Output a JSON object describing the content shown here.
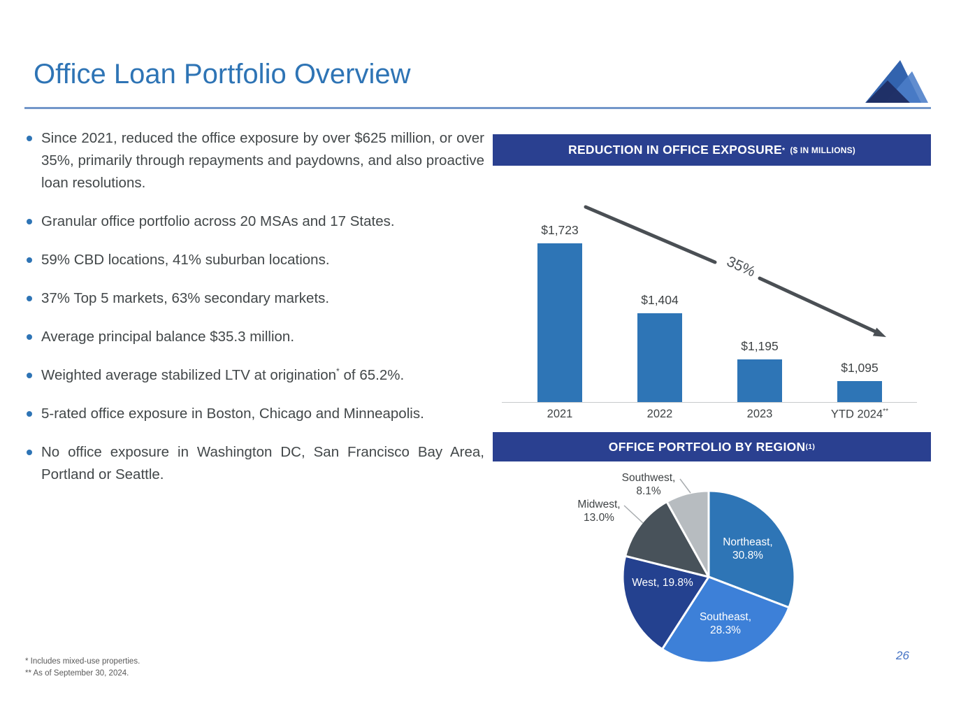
{
  "slide": {
    "title": "Office Loan Portfolio Overview",
    "page_number": "26",
    "footnote_1": "* Includes mixed-use properties.",
    "footnote_2": "** As of September 30, 2024."
  },
  "bullets": [
    {
      "pre": "Since 2021, reduced the office exposure by over $625 million, or over 35%, primarily through repayments and paydowns, and also proactive loan resolutions.",
      "sup": "",
      "post": ""
    },
    {
      "pre": "Granular office portfolio across 20 MSAs and 17 States.",
      "sup": "",
      "post": ""
    },
    {
      "pre": "59% CBD locations, 41% suburban locations.",
      "sup": "",
      "post": ""
    },
    {
      "pre": "37% Top 5 markets, 63% secondary markets.",
      "sup": "",
      "post": ""
    },
    {
      "pre": "Average principal balance $35.3 million.",
      "sup": "",
      "post": ""
    },
    {
      "pre": "Weighted average stabilized LTV at origination",
      "sup": "*",
      "post": " of 65.2%."
    },
    {
      "pre": "5-rated office exposure in Boston, Chicago and Minneapolis.",
      "sup": "",
      "post": ""
    },
    {
      "pre": "No office exposure in Washington DC, San Francisco Bay Area, Portland or Seattle.",
      "sup": "",
      "post": ""
    }
  ],
  "exposure_panel": {
    "header_title": "REDUCTION IN OFFICE EXPOSURE",
    "header_sup": "*",
    "header_subtitle": "($ IN MILLIONS)",
    "annotation": "35%"
  },
  "region_panel": {
    "header_title": "OFFICE PORTFOLIO BY REGION",
    "header_sup": "(1)",
    "slice_labels": [
      {
        "line1": "Northeast,",
        "line2": "30.8%"
      },
      {
        "line1": "Southeast,",
        "line2": "28.3%"
      },
      {
        "line1": "West, 19.8%",
        "line2": ""
      },
      {
        "line1": "Midwest,",
        "line2": "13.0%"
      },
      {
        "line1": "Southwest,",
        "line2": "8.1%"
      }
    ]
  },
  "chart_data": [
    {
      "type": "bar",
      "title": "REDUCTION IN OFFICE EXPOSURE ($ IN MILLIONS)",
      "categories": [
        "2021",
        "2022",
        "2023",
        "YTD 2024**"
      ],
      "values": [
        1723,
        1404,
        1195,
        1095
      ],
      "data_labels": [
        "$1,723",
        "$1,404",
        "$1,195",
        "$1,095"
      ],
      "annotation": "35% reduction arrow pointing down-right",
      "ylabel": "$ in millions",
      "ylim": [
        1000,
        1750
      ],
      "gridlines": false,
      "legend": "none",
      "bar_color": "#2E75B6"
    },
    {
      "type": "pie",
      "title": "OFFICE PORTFOLIO BY REGION",
      "labels": [
        "Northeast",
        "Southeast",
        "West",
        "Midwest",
        "Southwest"
      ],
      "values": [
        30.8,
        28.3,
        19.8,
        13.0,
        8.1
      ],
      "colors": [
        "#2E75B6",
        "#3D80D8",
        "#24418F",
        "#48525A",
        "#B7BCC0"
      ],
      "start_angle_deg": 0,
      "direction": "clockwise",
      "legend": "none"
    }
  ],
  "colors": {
    "title_blue": "#2E74B5",
    "band_blue": "#2A4090",
    "bar_blue": "#2E75B6",
    "body_text": "#424749",
    "arrow_gray": "#4A4F54",
    "underline_blue": "#7296C9"
  }
}
